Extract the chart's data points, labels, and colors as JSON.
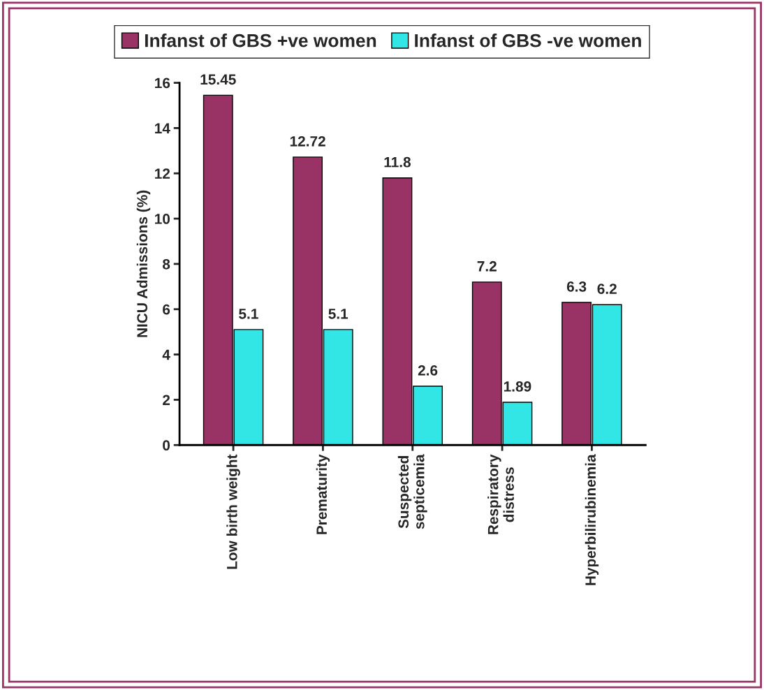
{
  "chart_data": {
    "type": "bar",
    "ylabel": "NICU Admissions (%)",
    "categories": [
      "Low birth weight",
      "Prematurity",
      "Suspected\nsepticemia",
      "Respiratory\ndistress",
      "Hyperbilirubinemia"
    ],
    "series": [
      {
        "name": "Infanst of GBS +ve women",
        "color": "#993366",
        "values": [
          15.45,
          12.72,
          11.8,
          7.2,
          6.3
        ]
      },
      {
        "name": "Infanst of GBS -ve women",
        "color": "#33e6e6",
        "values": [
          5.1,
          5.1,
          2.6,
          1.89,
          6.2
        ]
      }
    ],
    "ylim": [
      0,
      16
    ],
    "yticks": [
      0,
      2,
      4,
      6,
      8,
      10,
      12,
      14,
      16
    ],
    "data_labels": true,
    "grid": false,
    "legend": "top"
  }
}
